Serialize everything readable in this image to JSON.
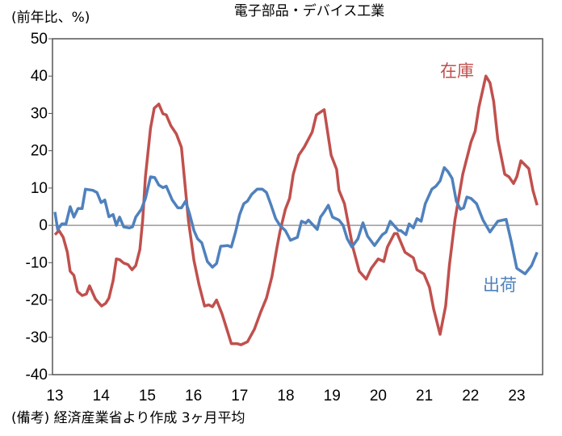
{
  "chart_data": {
    "type": "line",
    "title": "電子部品・デバイス工業",
    "ylabel": "(前年比、%)",
    "xlabel": "",
    "note": "(備考) 経済産業省より作成 3ヶ月平均",
    "ylim": [
      -40,
      50
    ],
    "xlim": [
      12.95,
      23.56
    ],
    "yticks": [
      50,
      40,
      30,
      20,
      10,
      0,
      -10,
      -20,
      -30,
      -40
    ],
    "xticks": [
      "13",
      "14",
      "15",
      "16",
      "17",
      "18",
      "19",
      "20",
      "21",
      "22",
      "23"
    ],
    "grid": false,
    "colors": {
      "inventory": "#c0504d",
      "shipments": "#4f81bd",
      "zero_line": "#999999"
    },
    "series": [
      {
        "name": "在庫",
        "color": "#c0504d",
        "x": [
          13.0,
          13.09,
          13.18,
          13.27,
          13.33,
          13.41,
          13.49,
          13.59,
          13.68,
          13.75,
          13.88,
          14.01,
          14.1,
          14.17,
          14.26,
          14.33,
          14.4,
          14.49,
          14.58,
          14.67,
          14.75,
          14.84,
          14.9,
          14.96,
          15.07,
          15.15,
          15.25,
          15.34,
          15.41,
          15.51,
          15.63,
          15.74,
          15.8,
          15.89,
          16.01,
          16.12,
          16.24,
          16.33,
          16.41,
          16.5,
          16.62,
          16.74,
          16.82,
          16.94,
          17.03,
          17.17,
          17.32,
          17.46,
          17.58,
          17.7,
          17.81,
          17.87,
          17.99,
          18.08,
          18.16,
          18.28,
          18.4,
          18.57,
          18.66,
          18.83,
          18.98,
          19.1,
          19.15,
          19.27,
          19.45,
          19.59,
          19.74,
          19.85,
          20.0,
          20.12,
          20.2,
          20.35,
          20.41,
          20.58,
          20.76,
          20.84,
          20.99,
          21.11,
          21.2,
          21.34,
          21.46,
          21.54,
          21.66,
          21.83,
          22.01,
          22.1,
          22.18,
          22.33,
          22.42,
          22.5,
          22.59,
          22.74,
          22.83,
          22.93,
          23.0,
          23.09,
          23.26,
          23.35,
          23.44
        ],
        "values": [
          -2.5,
          -1.4,
          -3.2,
          -7.2,
          -12.3,
          -13.4,
          -17.7,
          -18.8,
          -18.4,
          -16.2,
          -19.8,
          -21.6,
          -20.9,
          -19.5,
          -14.8,
          -9,
          -9.2,
          -10.1,
          -10.5,
          -11.9,
          -10.8,
          -6.5,
          1.4,
          13,
          26,
          31.4,
          32.5,
          29.9,
          29.6,
          26.7,
          24.5,
          20.9,
          13,
          1.4,
          -9.4,
          -15.9,
          -21.6,
          -21.3,
          -21.8,
          -20,
          -23.8,
          -28.5,
          -31.7,
          -31.7,
          -32,
          -31.2,
          -27.8,
          -23.1,
          -19.5,
          -13.7,
          -5.8,
          -1.8,
          4.3,
          7.2,
          13.7,
          18.8,
          21,
          25,
          29.6,
          31,
          18.8,
          15,
          9.4,
          5.8,
          -5.8,
          -12.3,
          -14.4,
          -11.5,
          -9,
          -9.7,
          -5.8,
          -2.2,
          -2.2,
          -7.2,
          -8.7,
          -11.9,
          -13,
          -16.6,
          -22.4,
          -29.2,
          -21.6,
          -10.8,
          1.4,
          13.7,
          22.4,
          25.3,
          31.7,
          40,
          38.2,
          33.2,
          23,
          13.7,
          13,
          11.2,
          13,
          17.3,
          15.2,
          9.4,
          5.4
        ]
      },
      {
        "name": "出荷",
        "color": "#4f81bd",
        "x": [
          13.0,
          13.06,
          13.15,
          13.24,
          13.33,
          13.41,
          13.5,
          13.59,
          13.66,
          13.82,
          13.91,
          14.0,
          14.08,
          14.17,
          14.26,
          14.33,
          14.4,
          14.49,
          14.61,
          14.68,
          14.75,
          14.87,
          14.96,
          15.07,
          15.16,
          15.25,
          15.34,
          15.41,
          15.54,
          15.66,
          15.74,
          15.83,
          15.92,
          16.01,
          16.09,
          16.18,
          16.3,
          16.41,
          16.5,
          16.59,
          16.74,
          16.82,
          16.91,
          17.0,
          17.09,
          17.17,
          17.26,
          17.38,
          17.49,
          17.58,
          17.67,
          17.78,
          17.87,
          17.99,
          18.1,
          18.25,
          18.34,
          18.43,
          18.49,
          18.68,
          18.75,
          18.83,
          18.92,
          19.01,
          19.15,
          19.24,
          19.33,
          19.43,
          19.56,
          19.67,
          19.77,
          19.92,
          20.09,
          20.17,
          20.26,
          20.44,
          20.49,
          20.6,
          20.67,
          20.76,
          20.84,
          20.93,
          21.02,
          21.16,
          21.25,
          21.34,
          21.43,
          21.51,
          21.6,
          21.69,
          21.78,
          21.85,
          21.92,
          22.01,
          22.13,
          22.27,
          22.42,
          22.59,
          22.77,
          22.88,
          23.0,
          23.18,
          23.32,
          23.44
        ],
        "values": [
          3.6,
          -1.1,
          0.4,
          0.4,
          5,
          2.2,
          4.5,
          4.5,
          9.7,
          9.4,
          8.8,
          6.1,
          6.8,
          2.3,
          2.9,
          0,
          2.2,
          -0.4,
          -0.7,
          -0.4,
          2.2,
          4.3,
          7.2,
          13,
          12.8,
          10.8,
          10.1,
          10.5,
          6.8,
          4.7,
          4.7,
          6.5,
          2.9,
          -1.4,
          -3.6,
          -4.7,
          -9.7,
          -11.2,
          -10.2,
          -5.6,
          -5.4,
          -5.8,
          -1.8,
          2.9,
          5.8,
          6.5,
          8.3,
          9.7,
          9.7,
          8.8,
          5.8,
          1.8,
          0,
          -1.4,
          -4,
          -3.2,
          1.1,
          0.6,
          1.4,
          -1.1,
          2.2,
          3.6,
          5.4,
          2.2,
          1.4,
          0,
          -3.6,
          -5.8,
          -3.6,
          0.7,
          -2.9,
          -5.4,
          -2.5,
          -1.8,
          1.1,
          -1.4,
          -1.4,
          -2.5,
          0.4,
          -0.7,
          1.8,
          1.1,
          5.8,
          9.7,
          10.5,
          11.9,
          15.5,
          14.4,
          12.6,
          6.5,
          4.3,
          4.7,
          7.6,
          7.2,
          5.8,
          1.4,
          -1.8,
          1.1,
          1.6,
          -4.3,
          -11.5,
          -13,
          -10.8,
          -7.2
        ]
      }
    ]
  }
}
